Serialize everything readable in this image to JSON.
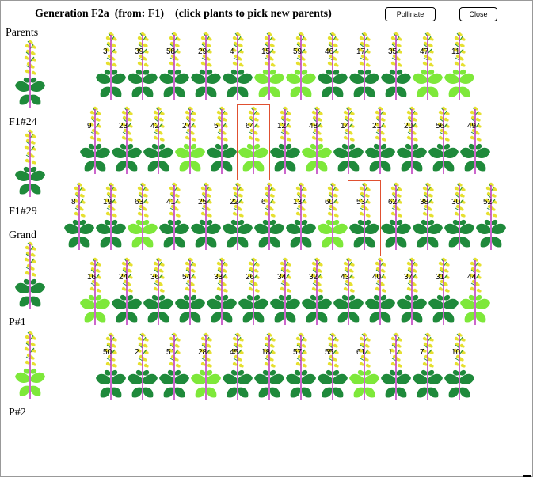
{
  "window": {
    "title": "Generation F2a  (from: F1)    (click plants to pick new parents)",
    "pollinate_label": "Pollinate",
    "close_label": "Close"
  },
  "sidebar": {
    "parents_label": "Parents",
    "parent1_label": "F1#24",
    "parent2_label": "F1#29",
    "grand_label": "Grand",
    "grand1_label": "P#1",
    "grand2_label": "P#2"
  },
  "colors": {
    "dark_leaf": "#1f8a3b",
    "light_leaf": "#7ee83a",
    "stem": "#c040c0",
    "flower": "#e6e030",
    "selection": "#e05030"
  },
  "plants": {
    "rows": [
      {
        "numbers": [
          3,
          39,
          58,
          29,
          4,
          15,
          59,
          46,
          17,
          35,
          47,
          11
        ],
        "light": [
          false,
          false,
          false,
          false,
          false,
          true,
          true,
          false,
          false,
          false,
          true,
          true
        ]
      },
      {
        "numbers": [
          9,
          23,
          42,
          27,
          5,
          64,
          12,
          48,
          14,
          21,
          20,
          56,
          49
        ],
        "light": [
          false,
          false,
          false,
          true,
          false,
          true,
          false,
          true,
          false,
          false,
          false,
          false,
          false
        ]
      },
      {
        "numbers": [
          8,
          19,
          63,
          41,
          25,
          22,
          6,
          13,
          60,
          53,
          62,
          38,
          30,
          52
        ],
        "light": [
          false,
          false,
          true,
          false,
          false,
          false,
          false,
          false,
          true,
          false,
          false,
          false,
          false,
          false
        ]
      },
      {
        "numbers": [
          16,
          24,
          36,
          54,
          33,
          26,
          34,
          32,
          43,
          40,
          37,
          31,
          44
        ],
        "light": [
          true,
          false,
          false,
          false,
          false,
          false,
          false,
          false,
          false,
          false,
          false,
          false,
          true
        ]
      },
      {
        "numbers": [
          50,
          2,
          51,
          28,
          45,
          18,
          57,
          55,
          61,
          1,
          7,
          10
        ],
        "light": [
          false,
          false,
          false,
          true,
          false,
          false,
          false,
          false,
          true,
          false,
          false,
          false
        ]
      }
    ],
    "selected": [
      64,
      53
    ]
  }
}
